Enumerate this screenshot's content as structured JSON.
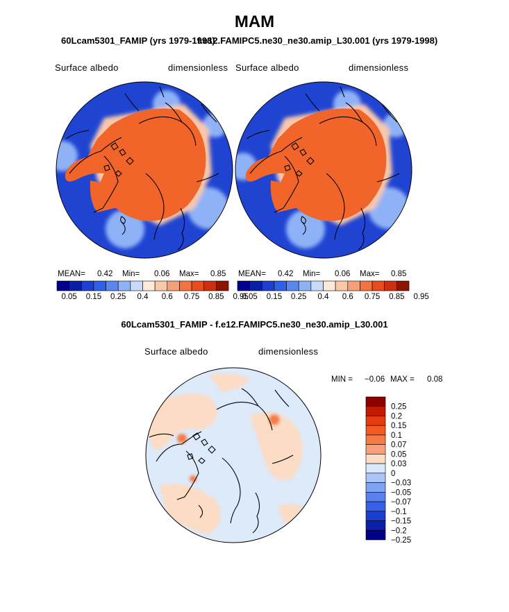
{
  "page_title": "MAM",
  "chart_data": [
    {
      "type": "heatmap",
      "projection": "north polar stereographic",
      "title": "60Lcam5301_FAMIP (yrs 1979-1998)",
      "left_label": "Surface albedo",
      "right_label": "dimensionless",
      "stats": {
        "mean_label": "MEAN=",
        "mean": "0.42",
        "min_label": "Min=",
        "min": "0.06",
        "max_label": "Max=",
        "max": "0.85"
      },
      "colorbar_ticks": [
        "0.05",
        "0.15",
        "0.25",
        "0.4",
        "0.6",
        "0.75",
        "0.85",
        "0.95"
      ]
    },
    {
      "type": "heatmap",
      "projection": "north polar stereographic",
      "title": "f.e12.FAMIPC5.ne30_ne30.amip_L30.001 (yrs 1979-1998)",
      "left_label": "Surface albedo",
      "right_label": "dimensionless",
      "stats": {
        "mean_label": "MEAN=",
        "mean": "0.42",
        "min_label": "Min=",
        "min": "0.06",
        "max_label": "Max=",
        "max": "0.85"
      },
      "colorbar_ticks": [
        "0.05",
        "0.15",
        "0.25",
        "0.4",
        "0.6",
        "0.75",
        "0.85",
        "0.95"
      ]
    },
    {
      "type": "heatmap",
      "projection": "north polar stereographic",
      "title": "60Lcam5301_FAMIP - f.e12.FAMIPC5.ne30_ne30.amip_L30.001",
      "left_label": "Surface albedo",
      "right_label": "dimensionless",
      "stats": {
        "min_label": "MIN =",
        "min": "−0.06",
        "max_label": "MAX =",
        "max": "0.08"
      },
      "colorbar_ticks": [
        "0.25",
        "0.2",
        "0.15",
        "0.1",
        "0.07",
        "0.05",
        "0.03",
        "0",
        "−0.03",
        "−0.05",
        "−0.07",
        "−0.1",
        "−0.15",
        "−0.2",
        "−0.25"
      ]
    }
  ],
  "colors": {
    "abs_scale": [
      "#00008c",
      "#0a1fa6",
      "#1f3fd0",
      "#2f60e8",
      "#5a86f0",
      "#8fb2f6",
      "#c8daf9",
      "#fde8da",
      "#f9c7aa",
      "#f6a07a",
      "#f2733f",
      "#e84b1e",
      "#c8300e",
      "#8c1500"
    ],
    "diff_scale": [
      "#8c0000",
      "#c21a00",
      "#e43c10",
      "#f25a22",
      "#f77b46",
      "#f9a17d",
      "#fcdcc4",
      "#d9e8fb",
      "#abc6f6",
      "#7ea3f1",
      "#5a82ee",
      "#3660e8",
      "#1a3ed0",
      "#0a20a8",
      "#000088"
    ],
    "ocean_blue": "#1f44d2",
    "ice_orange": "#f1642a",
    "diff_base": "#dceafa",
    "coast": "#000000"
  }
}
